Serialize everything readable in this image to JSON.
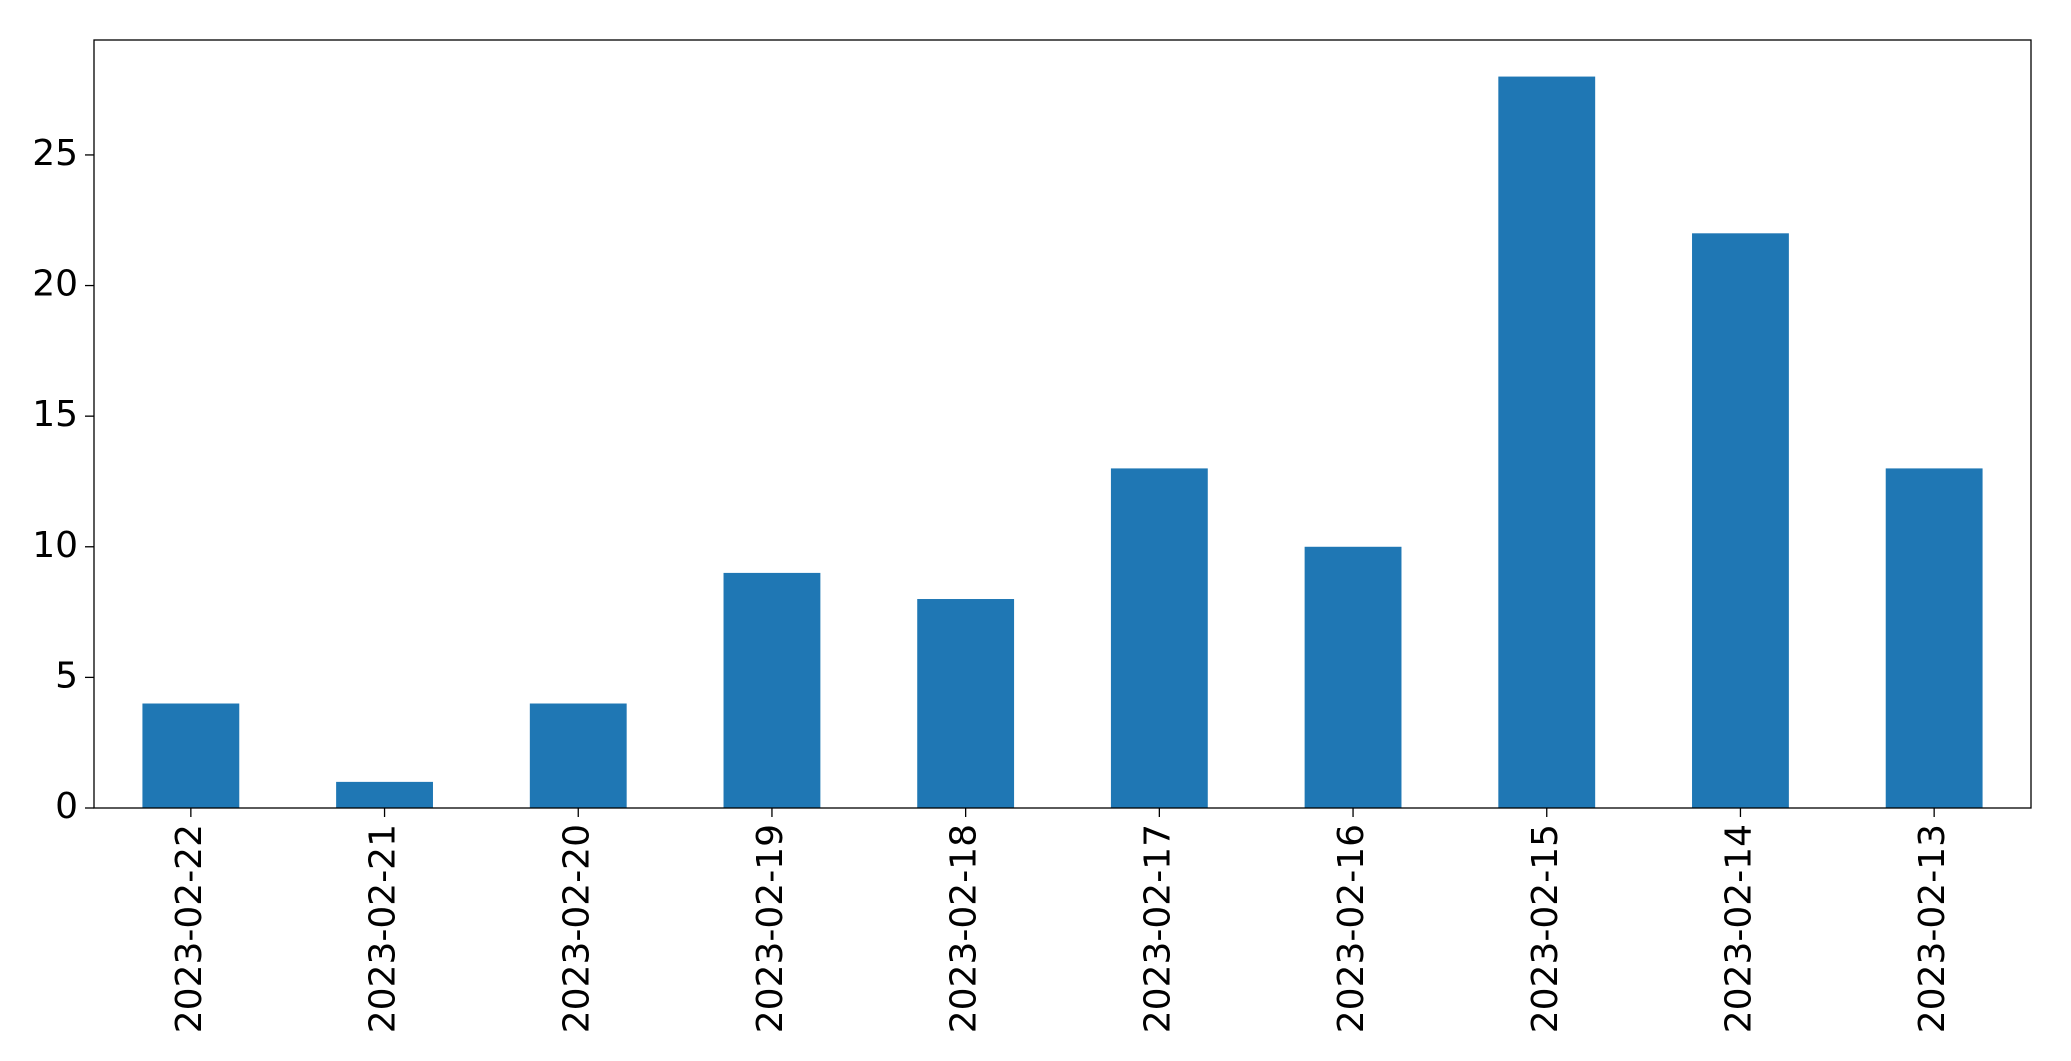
{
  "chart_data": {
    "type": "bar",
    "categories": [
      "2023-02-22",
      "2023-02-21",
      "2023-02-20",
      "2023-02-19",
      "2023-02-18",
      "2023-02-17",
      "2023-02-16",
      "2023-02-15",
      "2023-02-14",
      "2023-02-13"
    ],
    "values": [
      4,
      1,
      4,
      9,
      8,
      13,
      10,
      28,
      22,
      13
    ],
    "color": "#1f77b4",
    "ylim": [
      0,
      29.4
    ],
    "yticks": [
      0,
      5,
      10,
      15,
      20,
      25
    ],
    "grid": false
  }
}
